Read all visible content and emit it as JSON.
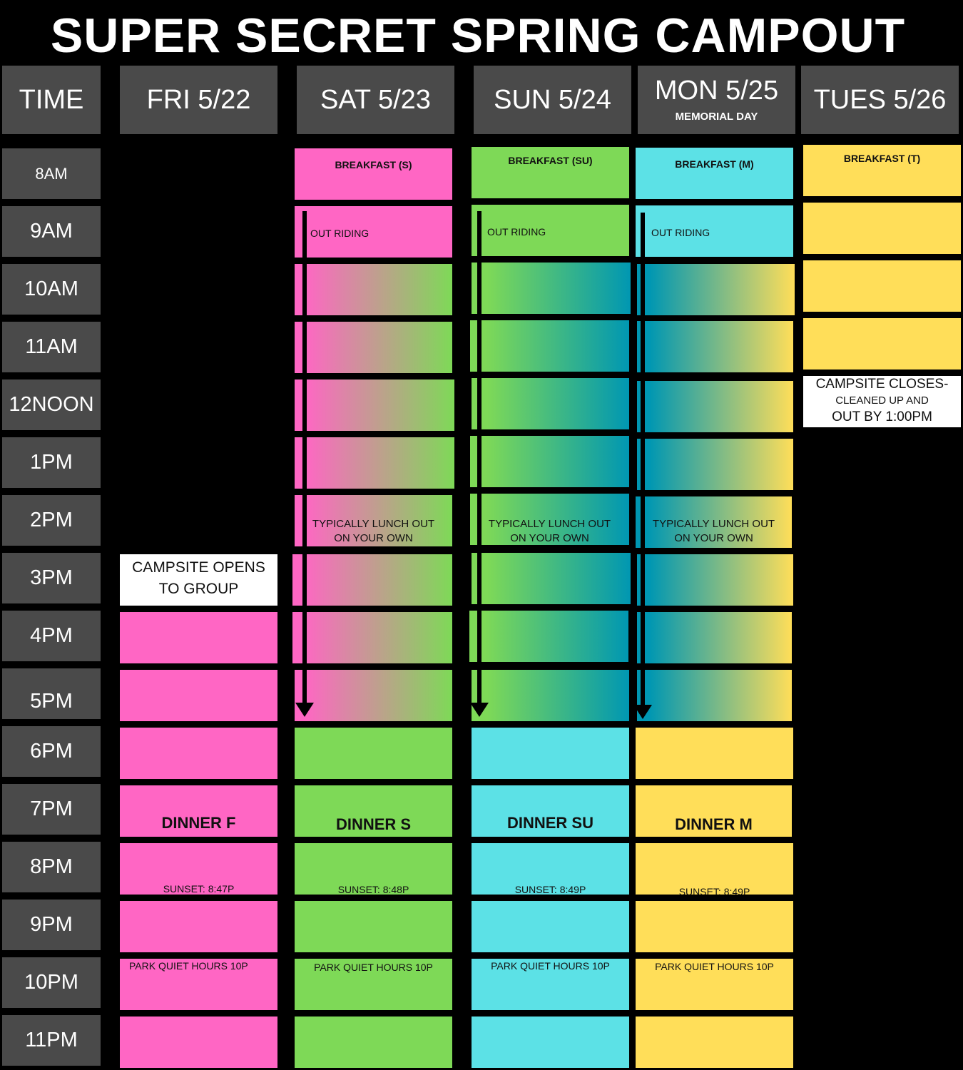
{
  "title": "SUPER SECRET SPRING CAMPOUT",
  "headers": {
    "time": "TIME",
    "fri": "FRI 5/22",
    "sat": "SAT 5/23",
    "sun": "SUN 5/24",
    "mon": "MON 5/25",
    "mon_sub": "MEMORIAL DAY",
    "tue": "TUES 5/26"
  },
  "times": [
    "8AM",
    "9AM",
    "10AM",
    "11AM",
    "12NOON",
    "1PM",
    "2PM",
    "3PM",
    "4PM",
    "5PM",
    "6PM",
    "7PM",
    "8PM",
    "9PM",
    "10PM",
    "11PM"
  ],
  "fri": {
    "opens_1": "CAMPSITE OPENS",
    "opens_2": "TO GROUP",
    "dinner": "DINNER F",
    "sunset": "SUNSET: 8:47P",
    "quiet": "PARK QUIET HOURS 10P"
  },
  "sat": {
    "breakfast": "BREAKFAST (S)",
    "riding": "OUT RIDING",
    "lunch_1": "TYPICALLY LUNCH OUT",
    "lunch_2": "ON YOUR OWN",
    "dinner": "DINNER S",
    "sunset": "SUNSET: 8:48P",
    "quiet": "PARK QUIET HOURS 10P"
  },
  "sun": {
    "breakfast": "BREAKFAST (SU)",
    "riding": "OUT RIDING",
    "lunch_1": "TYPICALLY LUNCH OUT",
    "lunch_2": "ON YOUR OWN",
    "dinner": "DINNER SU",
    "sunset": "SUNSET: 8:49P",
    "quiet": "PARK QUIET HOURS 10P"
  },
  "mon": {
    "breakfast": "BREAKFAST (M)",
    "riding": "OUT RIDING",
    "lunch_1": "TYPICALLY LUNCH OUT",
    "lunch_2": "ON YOUR OWN",
    "dinner": "DINNER M",
    "sunset": "SUNSET: 8:49P",
    "quiet": "PARK QUIET HOURS 10P"
  },
  "tue": {
    "breakfast": "BREAKFAST (T)",
    "closes_1": "CAMPSITE CLOSES-",
    "closes_2": "CLEANED UP AND",
    "closes_3": "OUT BY 1:00PM"
  },
  "colors": {
    "background": "#000000",
    "header_gray": "#4a4a4a",
    "pink": "#ff66c4",
    "green": "#7ed957",
    "cyan": "#5ce1e6",
    "teal": "#0097b2",
    "yellow": "#ffde59"
  }
}
